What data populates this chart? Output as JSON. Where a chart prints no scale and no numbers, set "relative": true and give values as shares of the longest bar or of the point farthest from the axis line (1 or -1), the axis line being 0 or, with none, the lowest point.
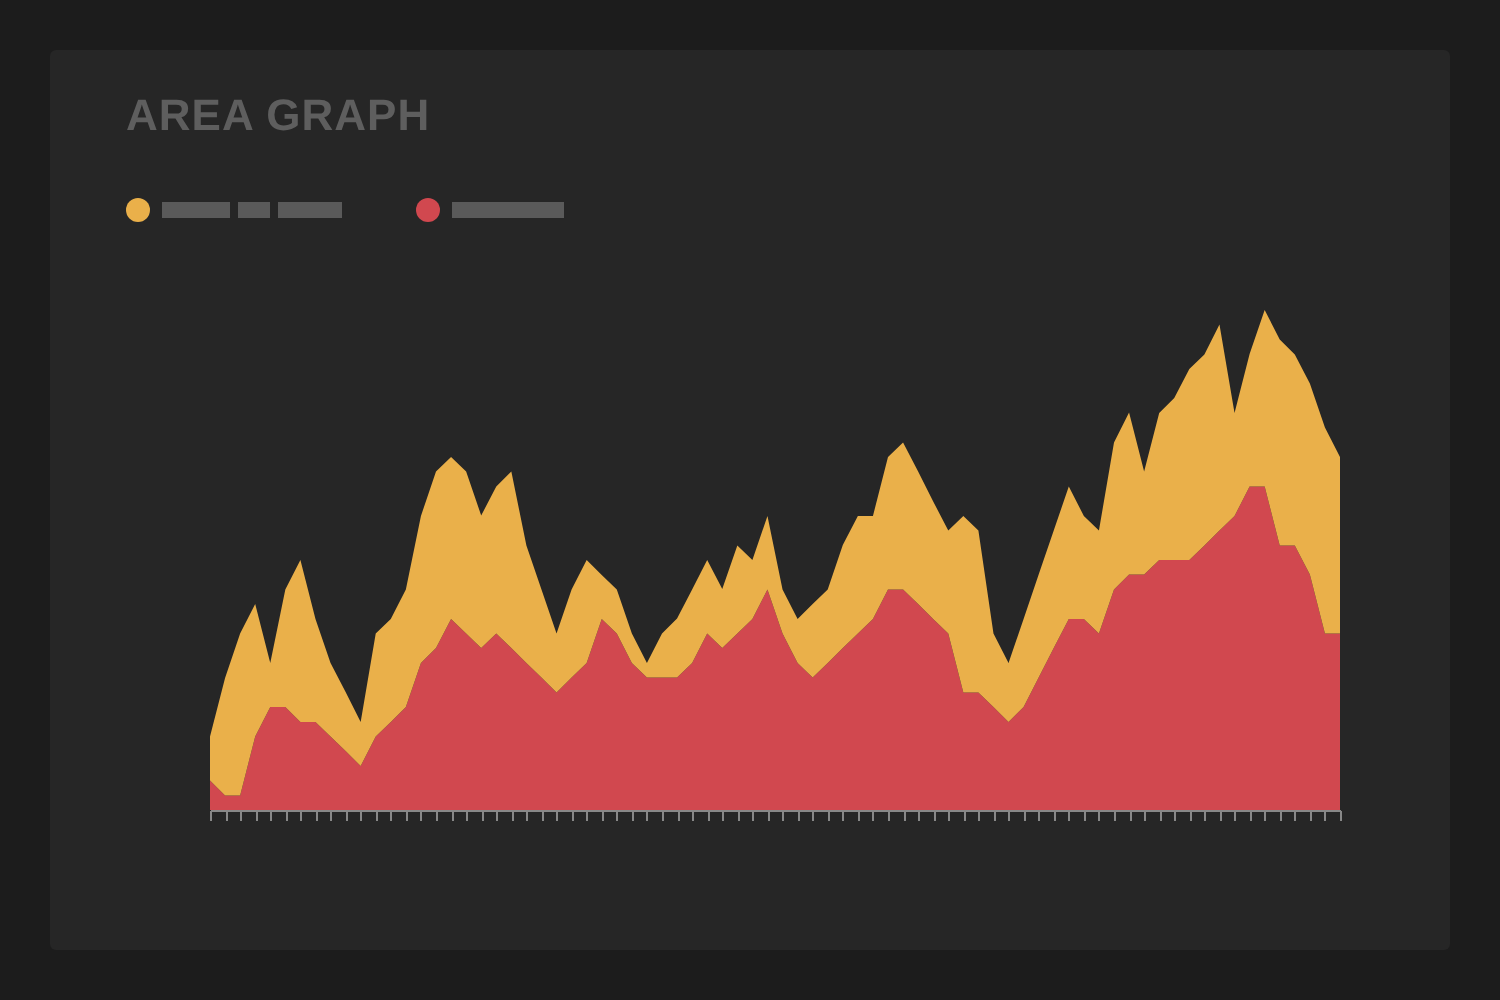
{
  "chart_data": {
    "type": "area",
    "title": "AREA GRAPH",
    "relative": true,
    "stacked": true,
    "categories": [
      null,
      null,
      null,
      null,
      null,
      null,
      null,
      null,
      null,
      null,
      null,
      null,
      null,
      null,
      null,
      null,
      null,
      null,
      null,
      null,
      null,
      null,
      null,
      null,
      null,
      null,
      null,
      null,
      null,
      null,
      null,
      null,
      null,
      null,
      null,
      null,
      null,
      null,
      null,
      null,
      null,
      null,
      null,
      null,
      null,
      null,
      null,
      null,
      null,
      null,
      null,
      null,
      null,
      null,
      null,
      null,
      null,
      null,
      null,
      null,
      null,
      null,
      null,
      null,
      null,
      null,
      null,
      null,
      null,
      null,
      null,
      null,
      null,
      null,
      null,
      null
    ],
    "series": [
      {
        "color": "#d1484f",
        "values": [
          0.059,
          0.029,
          0.029,
          0.147,
          0.206,
          0.206,
          0.176,
          0.176,
          0.147,
          0.118,
          0.088,
          0.147,
          0.176,
          0.206,
          0.294,
          0.324,
          0.382,
          0.353,
          0.324,
          0.353,
          0.324,
          0.294,
          0.265,
          0.235,
          0.265,
          0.294,
          0.382,
          0.353,
          0.294,
          0.265,
          0.265,
          0.265,
          0.294,
          0.353,
          0.324,
          0.353,
          0.382,
          0.441,
          0.353,
          0.294,
          0.265,
          0.294,
          0.324,
          0.353,
          0.382,
          0.441,
          0.441,
          0.412,
          0.382,
          0.353,
          0.235,
          0.235,
          0.206,
          0.176,
          0.206,
          0.265,
          0.324,
          0.382,
          0.382,
          0.353,
          0.441,
          0.471,
          0.471,
          0.5,
          0.5,
          0.5,
          0.529,
          0.559,
          0.588,
          0.647,
          0.647,
          0.529,
          0.529,
          0.471,
          0.353,
          0.353
        ]
      },
      {
        "color": "#eab04a",
        "values": [
          0.088,
          0.235,
          0.324,
          0.265,
          0.088,
          0.235,
          0.324,
          0.206,
          0.147,
          0.118,
          0.088,
          0.206,
          0.206,
          0.235,
          0.294,
          0.353,
          0.324,
          0.324,
          0.265,
          0.294,
          0.353,
          0.235,
          0.176,
          0.118,
          0.176,
          0.206,
          0.088,
          0.088,
          0.059,
          0.029,
          0.088,
          0.118,
          0.147,
          0.147,
          0.118,
          0.176,
          0.118,
          0.147,
          0.088,
          0.088,
          0.147,
          0.147,
          0.206,
          0.235,
          0.206,
          0.265,
          0.294,
          0.265,
          0.235,
          0.206,
          0.353,
          0.324,
          0.147,
          0.118,
          0.176,
          0.206,
          0.235,
          0.265,
          0.206,
          0.206,
          0.294,
          0.324,
          0.206,
          0.294,
          0.324,
          0.382,
          0.382,
          0.412,
          0.206,
          0.265,
          0.353,
          0.412,
          0.382,
          0.382,
          0.412,
          0.353
        ]
      }
    ]
  }
}
